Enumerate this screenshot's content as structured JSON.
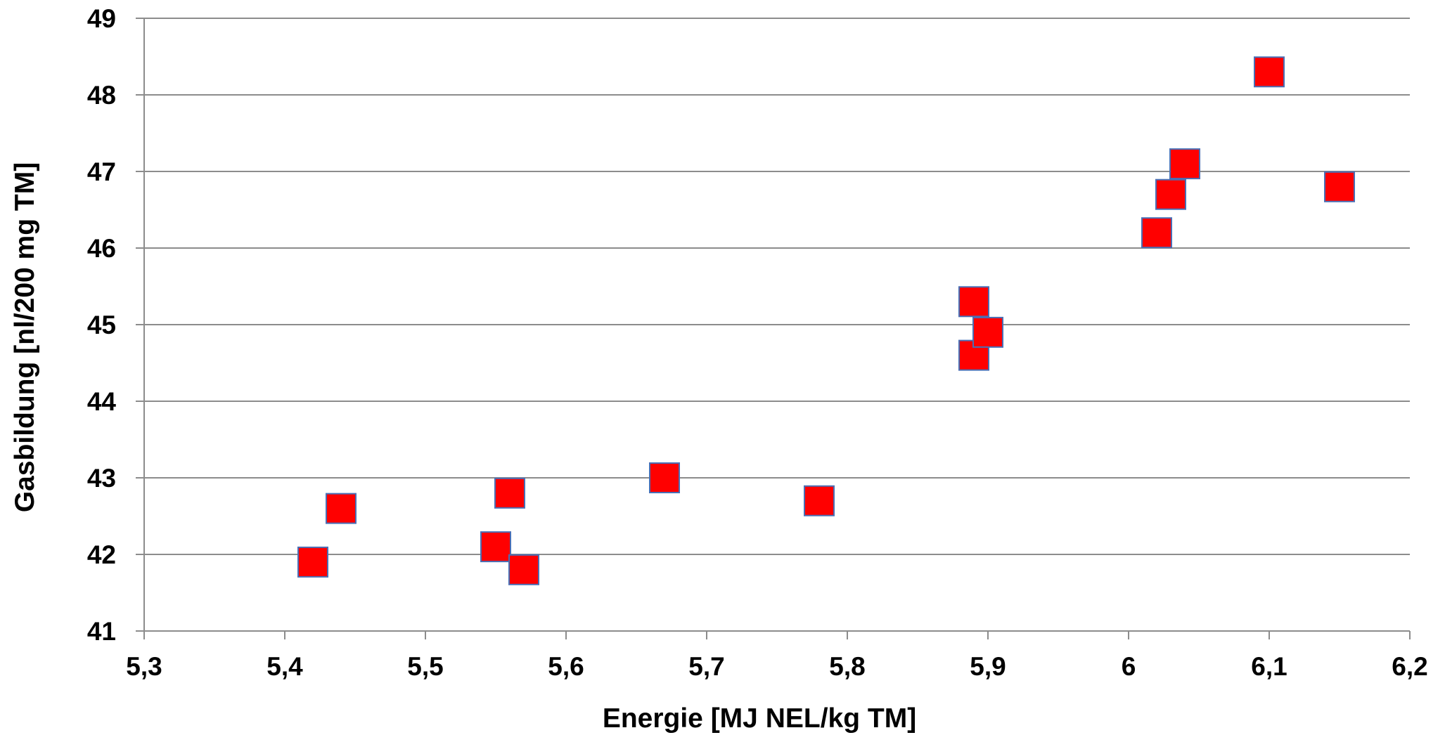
{
  "chart_data": {
    "type": "scatter",
    "title": "",
    "xlabel": "Energie [MJ NEL/kg TM]",
    "ylabel": "Gasbildung [nl/200 mg TM]",
    "xlim": [
      5.3,
      6.2
    ],
    "ylim": [
      41,
      49
    ],
    "x_ticks": [
      5.3,
      5.4,
      5.5,
      5.6,
      5.7,
      5.8,
      5.9,
      6.0,
      6.1,
      6.2
    ],
    "x_tick_labels": [
      "5,3",
      "5,4",
      "5,5",
      "5,6",
      "5,7",
      "5,8",
      "5,9",
      "6",
      "6,1",
      "6,2"
    ],
    "y_ticks": [
      41,
      42,
      43,
      44,
      45,
      46,
      47,
      48,
      49
    ],
    "y_tick_labels": [
      "41",
      "42",
      "43",
      "44",
      "45",
      "46",
      "47",
      "48",
      "49"
    ],
    "grid": "horizontal",
    "legend": "none",
    "marker": "square",
    "marker_color": "#ff0000",
    "marker_edge_color": "#4a6fb5",
    "gridline_color": "#8c8c8c",
    "axis_color": "#8c8c8c",
    "series": [
      {
        "points": [
          {
            "x": 5.42,
            "y": 41.9
          },
          {
            "x": 5.44,
            "y": 42.6
          },
          {
            "x": 5.55,
            "y": 42.1
          },
          {
            "x": 5.56,
            "y": 42.8
          },
          {
            "x": 5.57,
            "y": 41.8
          },
          {
            "x": 5.67,
            "y": 43.0
          },
          {
            "x": 5.78,
            "y": 42.7
          },
          {
            "x": 5.89,
            "y": 45.3
          },
          {
            "x": 5.89,
            "y": 44.6
          },
          {
            "x": 5.9,
            "y": 44.9
          },
          {
            "x": 6.02,
            "y": 46.2
          },
          {
            "x": 6.03,
            "y": 46.7
          },
          {
            "x": 6.04,
            "y": 47.1
          },
          {
            "x": 6.1,
            "y": 48.3
          },
          {
            "x": 6.15,
            "y": 46.8
          }
        ]
      }
    ]
  }
}
